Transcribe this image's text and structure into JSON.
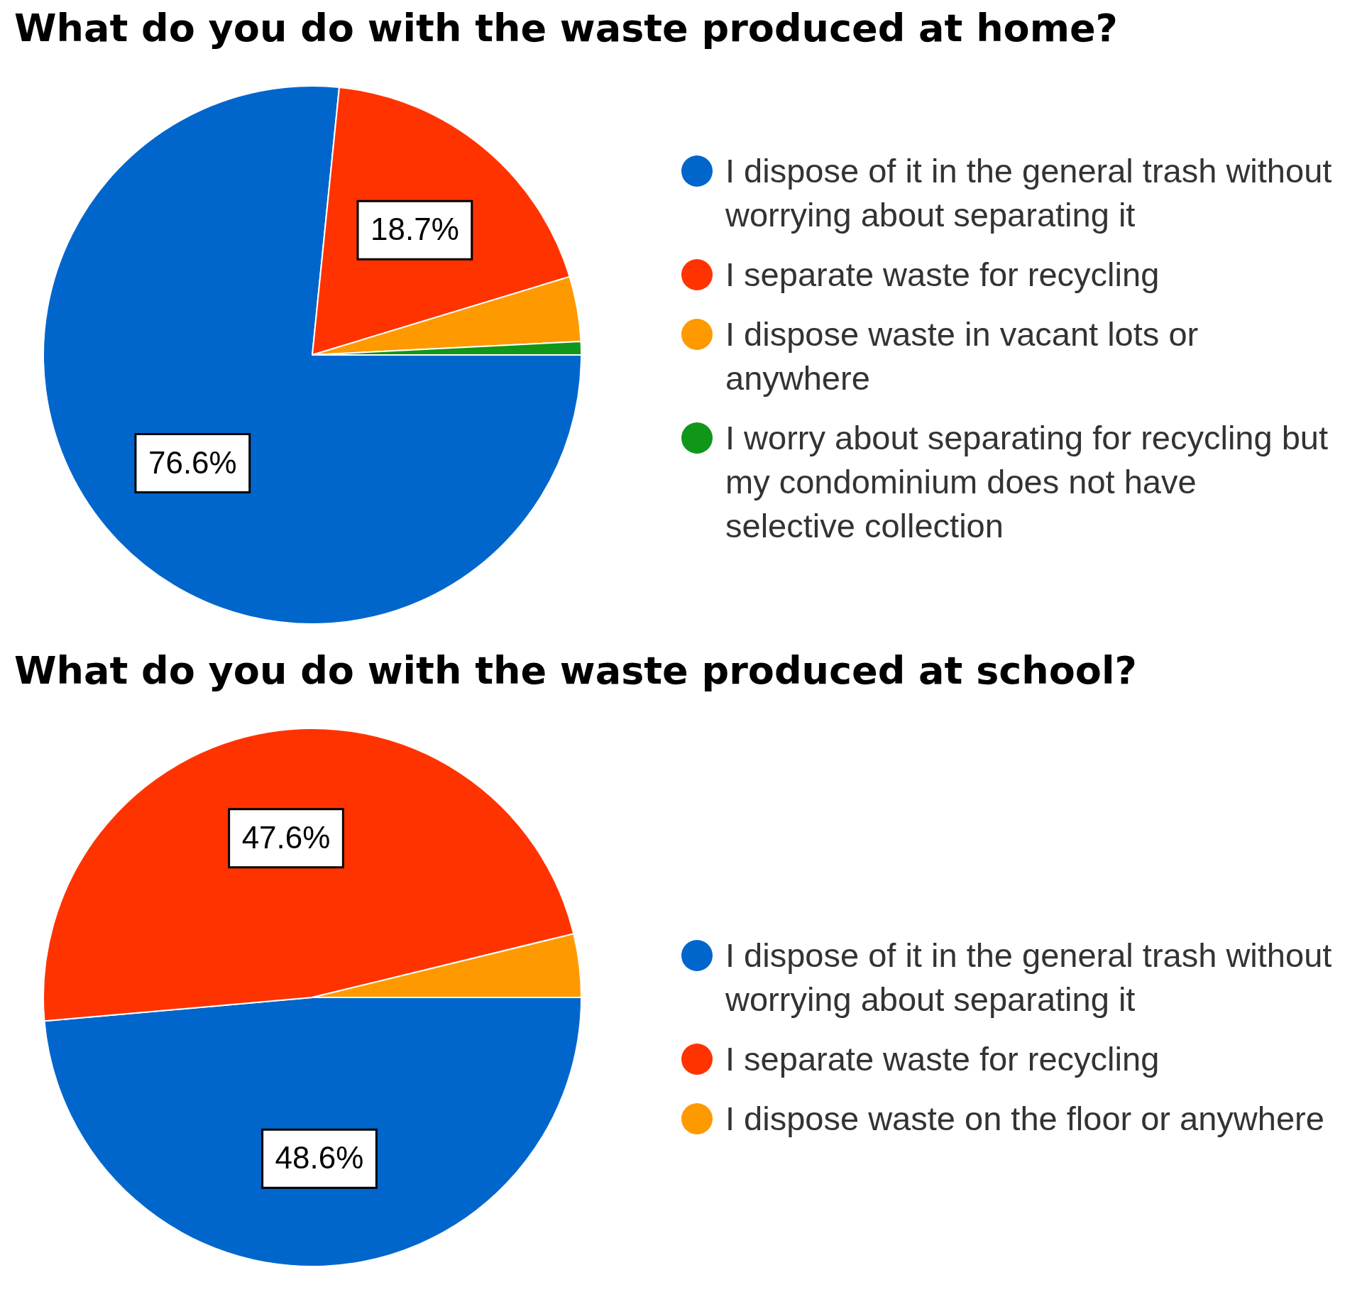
{
  "chart_data": [
    {
      "type": "pie",
      "title": "What do you do with the waste produced at home?",
      "categories": [
        "I dispose of it in the general trash without worrying about separating it",
        "I separate waste for recycling",
        "I dispose waste in vacant lots or anywhere",
        "I worry about separating for recycling but my condominium does not have selective collection"
      ],
      "values": [
        76.6,
        18.7,
        3.9,
        0.8
      ],
      "colors": [
        "#0066cc",
        "#ff3300",
        "#ff9900",
        "#109618"
      ],
      "value_labels": [
        "76.6%",
        "18.7%",
        null,
        null
      ],
      "legend": "right"
    },
    {
      "type": "pie",
      "title": "What do you do with the waste produced at school?",
      "categories": [
        "I dispose of it in the general trash without worrying about separating it",
        "I separate waste for recycling",
        "I dispose waste on the floor or anywhere"
      ],
      "values": [
        48.6,
        47.6,
        3.8
      ],
      "colors": [
        "#0066cc",
        "#ff3300",
        "#ff9900"
      ],
      "value_labels": [
        "48.6%",
        "47.6%",
        null
      ],
      "legend": "right"
    }
  ]
}
